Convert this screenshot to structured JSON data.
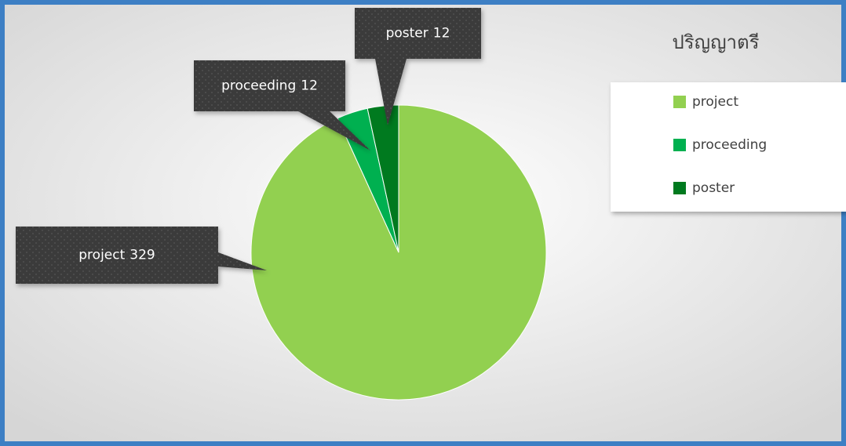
{
  "chart_data": {
    "type": "pie",
    "title": "ปริญญาตรี",
    "categories": [
      "project",
      "proceeding",
      "poster"
    ],
    "values": [
      329,
      12,
      12
    ],
    "colors": [
      "#92d050",
      "#00b050",
      "#007a1f"
    ],
    "legend": "right"
  }
}
